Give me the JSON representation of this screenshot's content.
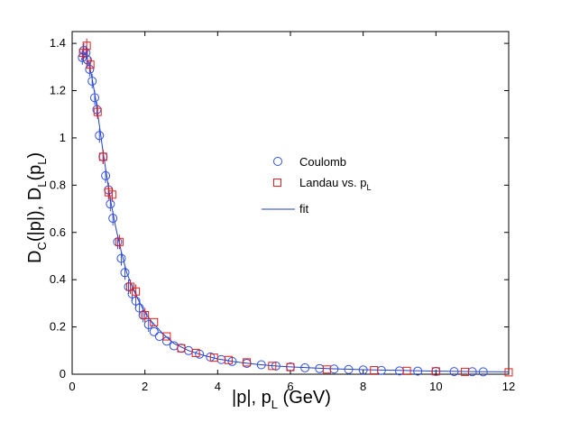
{
  "chart_data": {
    "type": "scatter",
    "xlabel": {
      "main": "|p|, p",
      "sub": "L",
      "tail": " (GeV)"
    },
    "ylabel": {
      "parts": [
        {
          "t": "D",
          "s": "base"
        },
        {
          "t": "C",
          "s": "sub"
        },
        {
          "t": "(|p|), D",
          "s": "base"
        },
        {
          "t": "L",
          "s": "sub"
        },
        {
          "t": "(p",
          "s": "base"
        },
        {
          "t": "L",
          "s": "sub"
        },
        {
          "t": ")",
          "s": "base"
        }
      ]
    },
    "xlim": [
      0,
      12
    ],
    "ylim": [
      0,
      1.45
    ],
    "xticks": [
      0,
      2,
      4,
      6,
      8,
      10,
      12
    ],
    "yticks": [
      0,
      0.2,
      0.4,
      0.6,
      0.8,
      1,
      1.2,
      1.4
    ],
    "xtick_labels": [
      "0",
      "2",
      "4",
      "6",
      "8",
      "10",
      "12"
    ],
    "ytick_labels": [
      "0",
      "0.2",
      "0.4",
      "0.6",
      "0.8",
      "1",
      "1.2",
      "1.4"
    ],
    "legend": [
      {
        "label": "Coulomb",
        "marker": "circle",
        "color": "#3050e0"
      },
      {
        "label_main": "Landau vs. p",
        "label_sub": "L",
        "marker": "square",
        "color": "#e02020"
      },
      {
        "label": "fit",
        "marker": "line",
        "color": "#2040c0"
      }
    ],
    "series": [
      {
        "name": "Coulomb",
        "marker": "circle",
        "color": "#3050e0",
        "x": [
          0.28,
          0.32,
          0.38,
          0.42,
          0.48,
          0.55,
          0.62,
          0.68,
          0.75,
          0.85,
          0.92,
          1.0,
          1.05,
          1.12,
          1.25,
          1.35,
          1.45,
          1.55,
          1.65,
          1.75,
          1.85,
          1.95,
          2.1,
          2.25,
          2.4,
          2.6,
          2.8,
          3.0,
          3.2,
          3.5,
          3.8,
          4.1,
          4.4,
          4.8,
          5.2,
          5.6,
          6.0,
          6.4,
          6.8,
          7.2,
          7.6,
          8.0,
          8.5,
          9.0,
          9.5,
          10.0,
          10.5,
          11.0,
          11.3
        ],
        "y": [
          1.34,
          1.37,
          1.36,
          1.33,
          1.29,
          1.24,
          1.17,
          1.12,
          1.01,
          0.92,
          0.84,
          0.78,
          0.72,
          0.66,
          0.56,
          0.49,
          0.43,
          0.37,
          0.34,
          0.31,
          0.28,
          0.25,
          0.21,
          0.18,
          0.16,
          0.14,
          0.12,
          0.11,
          0.1,
          0.085,
          0.073,
          0.062,
          0.054,
          0.046,
          0.04,
          0.035,
          0.031,
          0.027,
          0.024,
          0.022,
          0.02,
          0.018,
          0.016,
          0.014,
          0.013,
          0.012,
          0.011,
          0.0105,
          0.01
        ]
      },
      {
        "name": "Landau vs. pL",
        "marker": "square",
        "color": "#e02020",
        "x": [
          0.3,
          0.4,
          0.5,
          0.7,
          0.85,
          1.0,
          1.1,
          1.3,
          1.6,
          1.75,
          2.0,
          2.25,
          2.6,
          3.0,
          3.4,
          3.9,
          4.3,
          4.8,
          5.5,
          6.0,
          7.0,
          8.3,
          9.2,
          10.0,
          10.8,
          12.0
        ],
        "y": [
          1.36,
          1.39,
          1.31,
          1.11,
          0.92,
          0.77,
          0.76,
          0.56,
          0.37,
          0.35,
          0.25,
          0.22,
          0.16,
          0.11,
          0.09,
          0.07,
          0.06,
          0.05,
          0.035,
          0.03,
          0.02,
          0.017,
          0.014,
          0.012,
          0.01,
          0.008
        ]
      }
    ],
    "fit": {
      "name": "fit",
      "color": "#2040c0",
      "x": [
        0.25,
        0.35,
        0.45,
        0.55,
        0.65,
        0.75,
        0.85,
        0.95,
        1.05,
        1.2,
        1.35,
        1.5,
        1.65,
        1.8,
        2.0,
        2.2,
        2.5,
        2.8,
        3.2,
        3.6,
        4.0,
        4.5,
        5.0,
        5.5,
        6.0,
        7.0,
        8.0,
        9.0,
        10.0,
        11.0,
        12.0
      ],
      "y": [
        1.33,
        1.36,
        1.32,
        1.25,
        1.16,
        1.05,
        0.94,
        0.84,
        0.74,
        0.62,
        0.52,
        0.43,
        0.37,
        0.32,
        0.26,
        0.22,
        0.17,
        0.13,
        0.1,
        0.08,
        0.065,
        0.052,
        0.043,
        0.036,
        0.031,
        0.024,
        0.019,
        0.016,
        0.013,
        0.011,
        0.01
      ]
    }
  }
}
